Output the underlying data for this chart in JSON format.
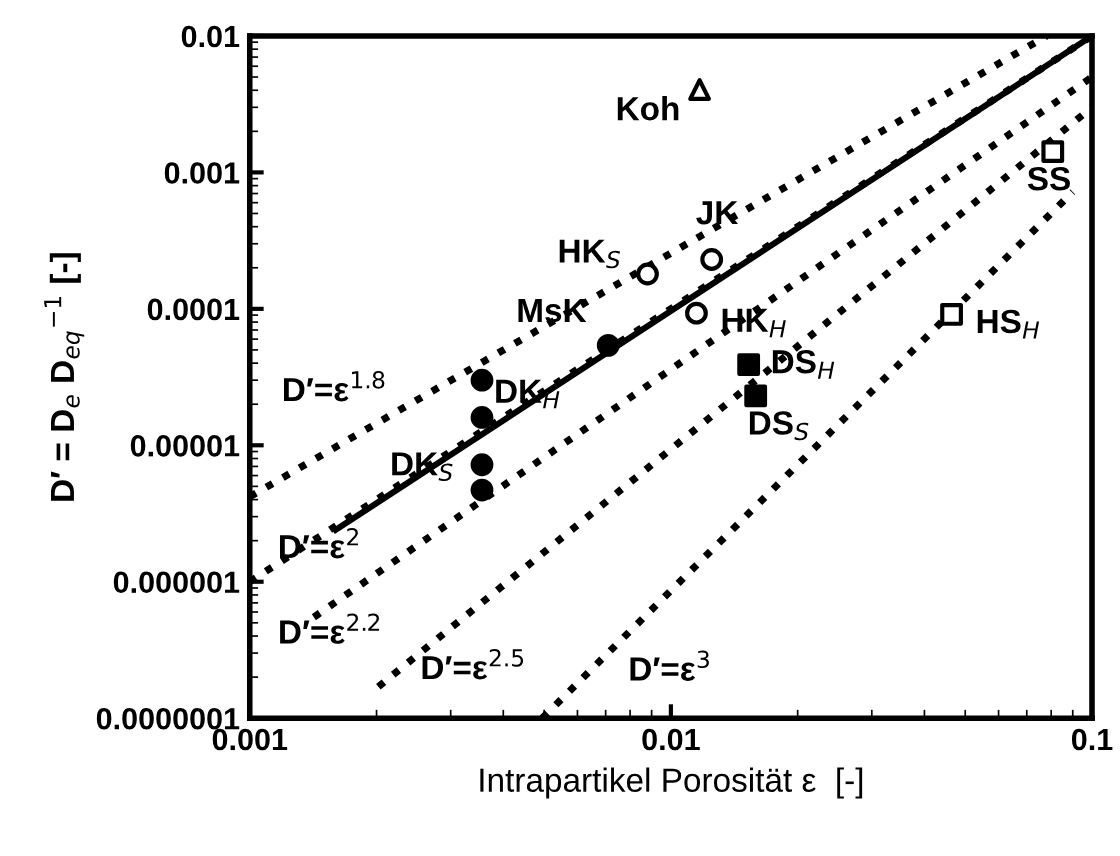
{
  "chart_data": {
    "type": "scatter",
    "xlabel": "Intrapartikel Porosität ε  [-]",
    "ylabel": "D′ = D$_{e}$ D$_{eq}$$^{−1}$ [-]",
    "log": "xy",
    "grid": false,
    "legend": false,
    "xlim": [
      0.001,
      0.1
    ],
    "xticks": [
      {
        "value": 0.001,
        "label": "0.001"
      },
      {
        "value": 0.01,
        "label": "0.01"
      },
      {
        "value": 0.1,
        "label": "0.1"
      }
    ],
    "ylim": [
      1e-07,
      0.01
    ],
    "yticks": [
      {
        "value": 1e-07,
        "label": "0.0000001"
      },
      {
        "value": 1e-06,
        "label": "0.000001"
      },
      {
        "value": 1e-05,
        "label": "0.00001"
      },
      {
        "value": 0.0001,
        "label": "0.0001"
      },
      {
        "value": 0.001,
        "label": "0.001"
      },
      {
        "value": 0.01,
        "label": "0.01"
      }
    ],
    "series": [
      {
        "name": "Koh",
        "marker": "triangle",
        "color": "#ffffff",
        "x": [
          0.0117
        ],
        "values": [
          0.00405
        ]
      },
      {
        "name": "HK$_{S}$",
        "marker": "circle",
        "color": "#ffffff",
        "x": [
          0.0088
        ],
        "values": [
          0.00018
        ]
      },
      {
        "name": "JK",
        "marker": "circle",
        "color": "#ffffff",
        "x": [
          0.0125
        ],
        "values": [
          0.00023
        ]
      },
      {
        "name": "HK$_{H}$",
        "marker": "circle",
        "color": "#ffffff",
        "x": [
          0.0115
        ],
        "values": [
          9.3e-05
        ]
      },
      {
        "name": "MsK",
        "marker": "circle",
        "color": "#000000",
        "x": [
          0.0071
        ],
        "values": [
          5.4e-05
        ]
      },
      {
        "name": "DK$_{H}$",
        "marker": "circle",
        "color": "#000000",
        "x": [
          0.00356,
          0.00356
        ],
        "values": [
          3e-05,
          1.6e-05
        ]
      },
      {
        "name": "DK$_{S}$",
        "marker": "circle",
        "color": "#000000",
        "x": [
          0.00356,
          0.00356
        ],
        "values": [
          7.2e-06,
          4.7e-06
        ]
      },
      {
        "name": "DS$_{H}$",
        "marker": "square",
        "color": "#000000",
        "x": [
          0.0153
        ],
        "values": [
          3.9e-05
        ]
      },
      {
        "name": "DS$_{S}$",
        "marker": "square",
        "color": "#000000",
        "x": [
          0.0159
        ],
        "values": [
          2.3e-05
        ]
      },
      {
        "name": "SS",
        "marker": "square",
        "color": "#ffffff",
        "x": [
          0.0807
        ],
        "values": [
          0.00142
        ]
      },
      {
        "name": "HS$_{H}$",
        "marker": "square",
        "color": "#ffffff",
        "x": [
          0.0464
        ],
        "values": [
          9.1e-05
        ]
      },
      {
        "type": "line",
        "line_style": "solid",
        "color": "#000000",
        "x": [
          0.0016,
          0.1
        ],
        "values": [
          2.4e-06,
          0.01
        ]
      },
      {
        "type": "line",
        "name": "D′=ε$^{1.8}$",
        "line_style": "dotted",
        "color": "#000000",
        "x": [
          0.001,
          0.078
        ],
        "values": [
          4.2e-06,
          0.01
        ]
      },
      {
        "type": "line",
        "name": "D′=ε$^{2}$",
        "line_style": "dotted",
        "color": "#000000",
        "x": [
          0.001,
          0.1
        ],
        "values": [
          1e-06,
          0.01
        ]
      },
      {
        "type": "line",
        "name": "D′=ε$^{2.2}$",
        "line_style": "dotted",
        "color": "#000000",
        "x": [
          0.00142,
          0.1
        ],
        "values": [
          5.5e-07,
          0.005
        ]
      },
      {
        "type": "line",
        "name": "D′=ε$^{2.5}$",
        "line_style": "dotted",
        "color": "#000000",
        "x": [
          0.00202,
          0.1
        ],
        "values": [
          1.7e-07,
          0.003
        ]
      },
      {
        "type": "line",
        "name": "D′=ε$^{3}$",
        "line_style": "dotted",
        "color": "#000000",
        "x": [
          0.00495,
          0.09
        ],
        "values": [
          1e-07,
          0.00072
        ]
      }
    ]
  }
}
